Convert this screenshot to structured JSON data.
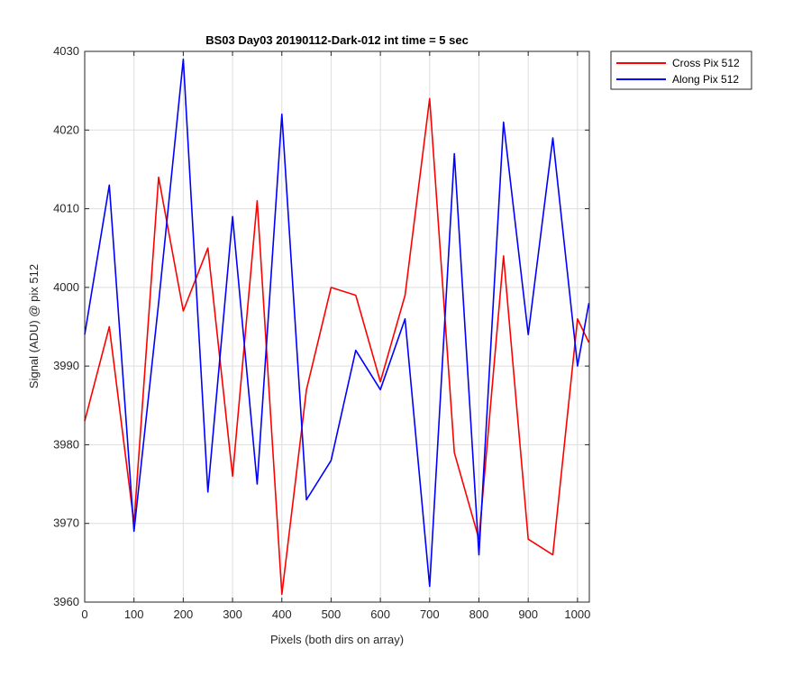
{
  "chart_data": {
    "type": "line",
    "title": "BS03 Day03 20190112-Dark-012 int time = 5 sec",
    "xlabel": "Pixels (both dirs on array)",
    "ylabel": "Signal (ADU) @ pix 512",
    "xlim": [
      0,
      1024
    ],
    "ylim": [
      3960,
      4030
    ],
    "xticks": [
      0,
      100,
      200,
      300,
      400,
      500,
      600,
      700,
      800,
      900,
      1000
    ],
    "yticks": [
      3960,
      3970,
      3980,
      3990,
      4000,
      4010,
      4020,
      4030
    ],
    "grid": true,
    "legend_position": "outside-top-right",
    "x": [
      0,
      50,
      100,
      150,
      200,
      250,
      300,
      350,
      400,
      450,
      500,
      550,
      600,
      650,
      700,
      750,
      800,
      850,
      900,
      950,
      1000,
      1023
    ],
    "series": [
      {
        "name": "Cross Pix 512",
        "color": "#ff0000",
        "values": [
          3983,
          3995,
          3970,
          4014,
          3997,
          4005,
          3976,
          4011,
          3961,
          3987,
          4000,
          3999,
          3988,
          3999,
          4024,
          3979,
          3968,
          4004,
          3968,
          3966,
          3996,
          3993
        ]
      },
      {
        "name": "Along Pix 512",
        "color": "#0000ff",
        "values": [
          3994,
          4013,
          3969,
          3998,
          4029,
          3974,
          4009,
          3975,
          4022,
          3973,
          3978,
          3992,
          3987,
          3996,
          3962,
          4017,
          3966,
          4021,
          3994,
          4019,
          3990,
          3998
        ]
      }
    ]
  }
}
